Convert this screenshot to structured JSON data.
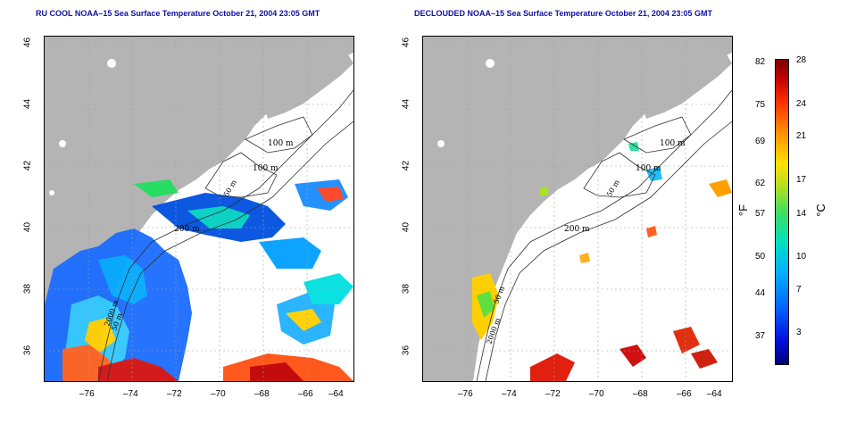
{
  "titles": {
    "left": "RU COOL NOAA–15 Sea Surface Temperature October 21, 2004 23:05 GMT",
    "right": "DECLOUDED NOAA–15 Sea Surface Temperature October 21, 2004 23:05 GMT"
  },
  "axes": {
    "x_ticks": [
      "–76",
      "–74",
      "–72",
      "–70",
      "–68",
      "–66",
      "–64"
    ],
    "y_ticks": [
      "46",
      "44",
      "42",
      "40",
      "38",
      "36"
    ]
  },
  "contour_labels": {
    "m100": "100 m",
    "m200": "200 m",
    "m50": "50 m",
    "m2000": "2000 m"
  },
  "colorbar": {
    "fahrenheit_ticks": [
      "82",
      "75",
      "69",
      "62",
      "57",
      "50",
      "44",
      "37"
    ],
    "celsius_ticks": [
      "28",
      "24",
      "21",
      "17",
      "14",
      "10",
      "7",
      "3"
    ],
    "fahrenheit_unit": "°F",
    "celsius_unit": "°C",
    "colors": [
      "#00007a",
      "#0010e0",
      "#0060ff",
      "#00b0ff",
      "#00e0c0",
      "#40e060",
      "#b0e020",
      "#ffe000",
      "#ff9000",
      "#ff3000",
      "#c00000",
      "#800000"
    ]
  },
  "colors": {
    "land": "#b4b4b4",
    "title": "#1010a0",
    "grid": "#a0a0a0"
  }
}
